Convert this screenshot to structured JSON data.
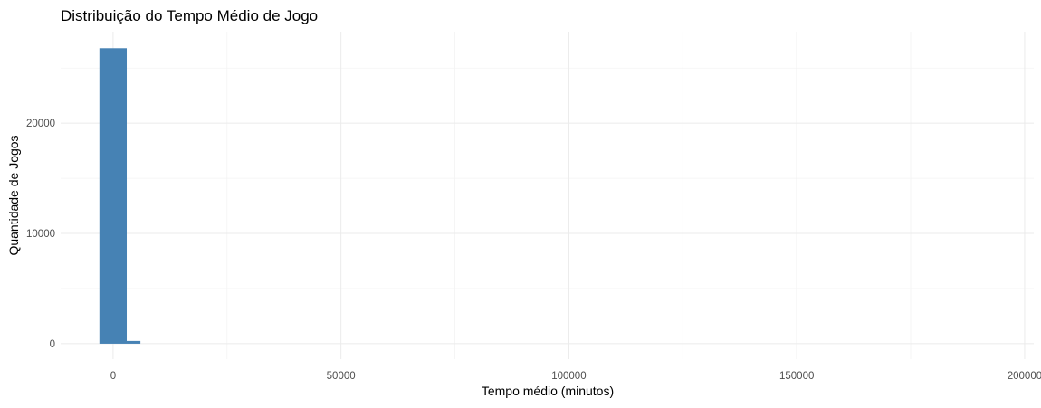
{
  "chart_data": {
    "type": "bar",
    "title": "Distribuição do Tempo Médio de Jogo",
    "xlabel": "Tempo médio (minutos)",
    "ylabel": "Quantidade de Jogos",
    "xlim": [
      -11500,
      202000
    ],
    "ylim": [
      -1400,
      28300
    ],
    "x_ticks": [
      {
        "value": 0,
        "label": "0"
      },
      {
        "value": 50000,
        "label": "50000"
      },
      {
        "value": 100000,
        "label": "100000"
      },
      {
        "value": 150000,
        "label": "150000"
      },
      {
        "value": 200000,
        "label": "200000"
      }
    ],
    "x_minor_ticks": [
      25000,
      75000,
      125000,
      175000
    ],
    "y_ticks": [
      {
        "value": 0,
        "label": "0"
      },
      {
        "value": 10000,
        "label": "10000"
      },
      {
        "value": 20000,
        "label": "20000"
      }
    ],
    "y_minor_ticks": [
      5000,
      15000,
      25000
    ],
    "bins": [
      {
        "x0": -3000,
        "x1": 3000,
        "count": 26800
      },
      {
        "x0": 3000,
        "x1": 6000,
        "count": 250
      }
    ],
    "grid": true,
    "legend": "none",
    "colors": {
      "bar": "#4682B4",
      "grid_major": "#ebebeb",
      "grid_minor": "#f3f3f3"
    }
  }
}
